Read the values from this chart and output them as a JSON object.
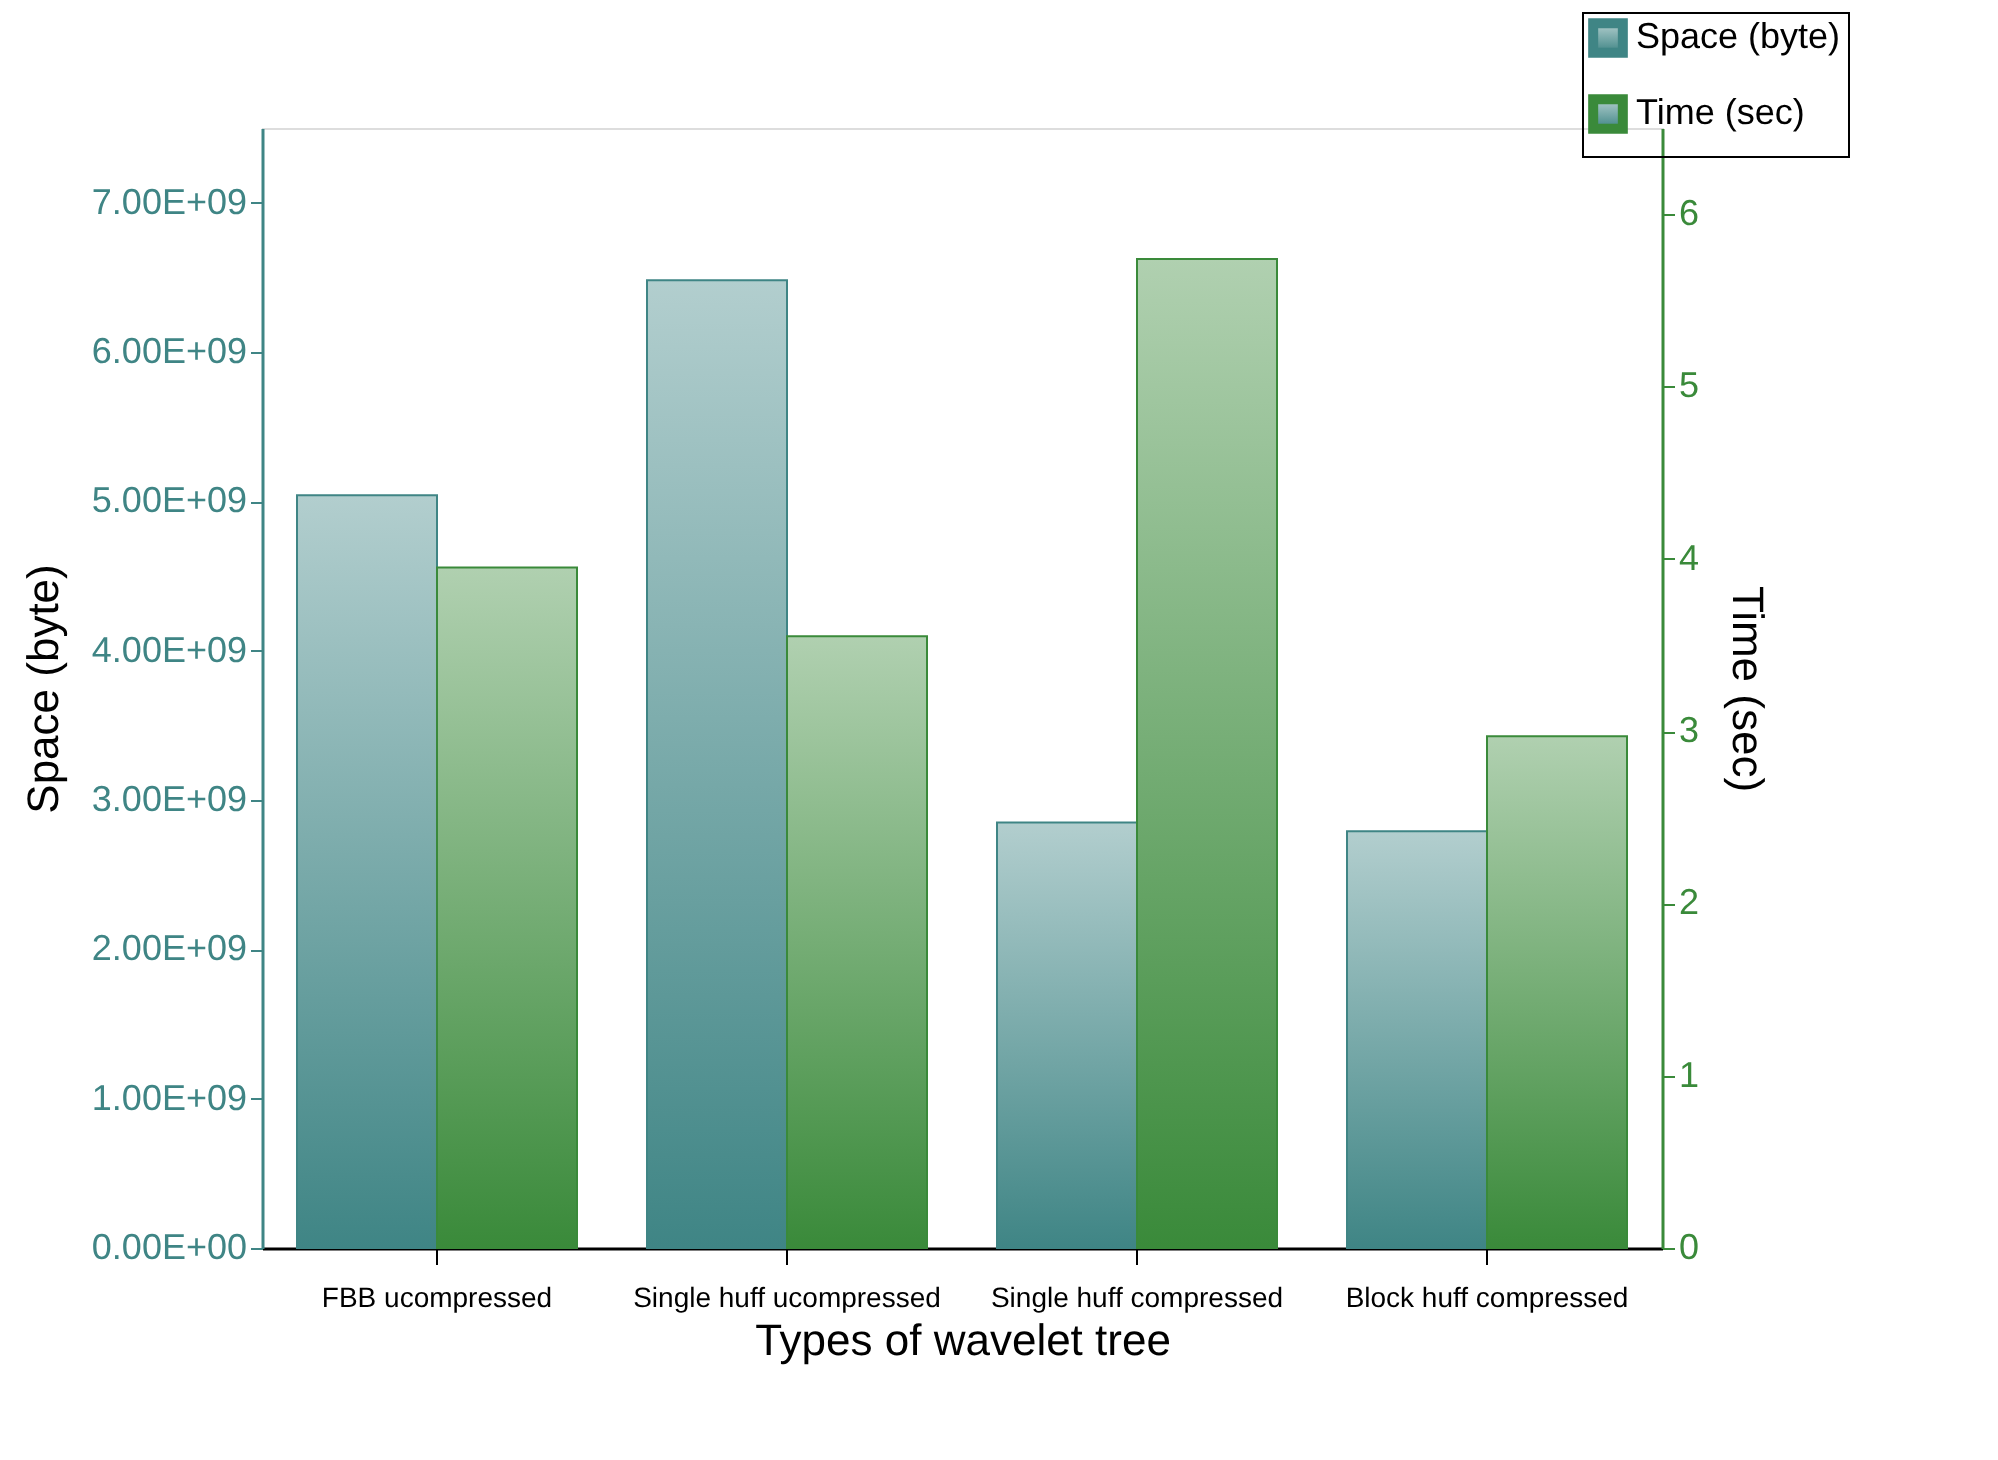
{
  "chart_data": {
    "type": "bar",
    "xlabel": "Types of wavelet tree",
    "ylabel": "Space (byte)",
    "y2label": "Time (sec)",
    "categories": [
      "FBB ucompressed",
      "Single huff ucompressed",
      "Single huff compressed",
      "Block huff compressed"
    ],
    "series": [
      {
        "name": "Space (byte)",
        "color": "#3f8585",
        "values": [
          5040000000.0,
          6480000000.0,
          2850000000.0,
          2790000000.0
        ]
      },
      {
        "name": "Time (sec)",
        "color": "#3a8a3a",
        "axis": "y2",
        "values": [
          3.95,
          3.55,
          5.74,
          2.97
        ]
      }
    ],
    "ylim": [
      0,
      7500000000.0
    ],
    "yticks": [
      {
        "value": 0,
        "label": "0.00E+00"
      },
      {
        "value": 1000000000.0,
        "label": "1.00E+09"
      },
      {
        "value": 2000000000.0,
        "label": "2.00E+09"
      },
      {
        "value": 3000000000.0,
        "label": "3.00E+09"
      },
      {
        "value": 4000000000.0,
        "label": "4.00E+09"
      },
      {
        "value": 5000000000.0,
        "label": "5.00E+09"
      },
      {
        "value": 6000000000.0,
        "label": "6.00E+09"
      },
      {
        "value": 7000000000.0,
        "label": "7.00E+09"
      }
    ],
    "y2lim": [
      0,
      6.5
    ],
    "y2ticks": [
      0,
      1,
      2,
      3,
      4,
      5,
      6
    ],
    "grid": false,
    "legend": "top right"
  }
}
